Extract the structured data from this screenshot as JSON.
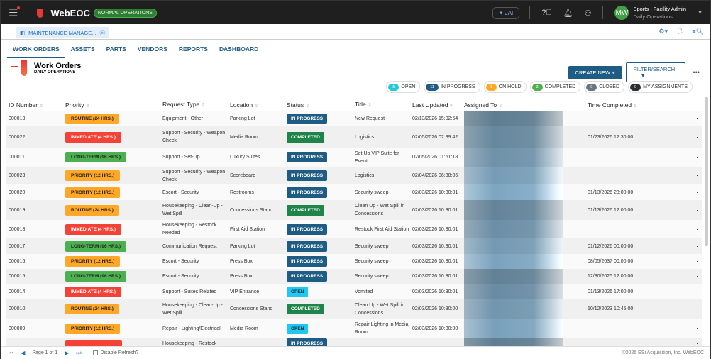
{
  "app": {
    "name": "WebEOC",
    "mode": "NORMAL OPERATIONS",
    "jai": "JAI",
    "user_initials": "MW",
    "user_name": "Sports - Facility Admin",
    "user_role": "Daily Operations"
  },
  "board_tab": "MAINTENANCE MANAGE...",
  "nav": [
    "WORK ORDERS",
    "ASSETS",
    "PARTS",
    "VENDORS",
    "REPORTS",
    "DASHBOARD"
  ],
  "page": {
    "title": "Work Orders",
    "subtitle": "DAILY OPERATIONS",
    "create": "CREATE NEW  +",
    "filter": "FILTER/SEARCH"
  },
  "pills": [
    {
      "count": "5",
      "label": "OPEN",
      "color": "#26c6da"
    },
    {
      "count": "11",
      "label": "IN PROGRESS",
      "color": "#1e5c84"
    },
    {
      "count": "1",
      "label": "ON HOLD",
      "color": "#ffa726"
    },
    {
      "count": "3",
      "label": "COMPLETED",
      "color": "#4caf50"
    },
    {
      "count": "0",
      "label": "CLOSED",
      "color": "#6c757d"
    },
    {
      "count": "0",
      "label": "MY ASSIGNMENTS",
      "color": "#2b2f33"
    }
  ],
  "columns": [
    "ID Number",
    "Priority",
    "Request Type",
    "Location",
    "Status",
    "Title",
    "Last Updated",
    "Assigned To",
    "Time Completed"
  ],
  "colors": {
    "ROUTINE": "#ffa726",
    "IMMEDIATE": "#f44336",
    "LONG-TERM": "#4caf50",
    "PRIORITY": "#ffa726",
    "IN PROGRESS": "#1e5c84",
    "COMPLETED": "#1e8449",
    "OPEN": "#1ec8f0"
  },
  "rows": [
    {
      "id": "000013",
      "priority": "ROUTINE (24 HRS.)",
      "ptype": "ROUTINE",
      "type": "Equipment - Other",
      "location": "Parking Lot",
      "status": "IN PROGRESS",
      "title": "New Request",
      "updated": "02/13/2026 15:02:54",
      "completed": "",
      "h": 22
    },
    {
      "id": "000022",
      "priority": "IMMEDIATE (4 HRS.)",
      "ptype": "IMMEDIATE",
      "type": "Support - Security - Weapon Check",
      "location": "Media Room",
      "status": "COMPLETED",
      "title": "Logistics",
      "updated": "02/05/2026 02:39:42",
      "completed": "01/23/2026 12:30:00",
      "h": 30
    },
    {
      "id": "000011",
      "priority": "LONG-TERM (96 HRS.)",
      "ptype": "LONG-TERM",
      "type": "Support - Set-Up",
      "location": "Luxury Suites",
      "status": "IN PROGRESS",
      "title": "Set Up VIP Suite for Event",
      "updated": "02/05/2026 01:51:18",
      "completed": "",
      "h": 27
    },
    {
      "id": "000023",
      "priority": "PRIORITY (12 HRS.)",
      "ptype": "PRIORITY",
      "type": "Support - Security - Weapon Check",
      "location": "Scoreboard",
      "status": "IN PROGRESS",
      "title": "Logistics",
      "updated": "02/04/2026 06:38:06",
      "completed": "",
      "h": 25
    },
    {
      "id": "000020",
      "priority": "PRIORITY (12 HRS.)",
      "ptype": "PRIORITY",
      "type": "Escort - Security",
      "location": "Restrooms",
      "status": "IN PROGRESS",
      "title": "Security sweep",
      "updated": "02/03/2026 10:30:01",
      "completed": "01/13/2026 23:00:00",
      "h": 22
    },
    {
      "id": "000019",
      "priority": "ROUTINE (24 HRS.)",
      "ptype": "ROUTINE",
      "type": "Housekeeping - Clean-Up - Wet Spill",
      "location": "Concessions Stand",
      "status": "COMPLETED",
      "title": "Clean Up - Wet Spill in Concessions",
      "updated": "02/03/2026 10:30:01",
      "completed": "01/13/2026 12:00:00",
      "h": 28
    },
    {
      "id": "000018",
      "priority": "IMMEDIATE (4 HRS.)",
      "ptype": "IMMEDIATE",
      "type": "Housekeeping - Restock Needed",
      "location": "First Aid Station",
      "status": "IN PROGRESS",
      "title": "Restock First Aid Station",
      "updated": "02/03/2026 10:30:01",
      "completed": "",
      "h": 26
    },
    {
      "id": "000017",
      "priority": "LONG-TERM (96 HRS.)",
      "ptype": "LONG-TERM",
      "type": "Communication Request",
      "location": "Parking Lot",
      "status": "IN PROGRESS",
      "title": "Security sweep",
      "updated": "02/03/2026 10:30:01",
      "completed": "01/12/2026 00:00:00",
      "h": 22
    },
    {
      "id": "000016",
      "priority": "PRIORITY (12 HRS.)",
      "ptype": "PRIORITY",
      "type": "Escort - Security",
      "location": "Press Box",
      "status": "IN PROGRESS",
      "title": "Security sweep",
      "updated": "02/03/2026 10:30:01",
      "completed": "08/05/2037 00:00:00",
      "h": 21
    },
    {
      "id": "000015",
      "priority": "LONG-TERM (96 HRS.)",
      "ptype": "LONG-TERM",
      "type": "Escort - Security",
      "location": "Press Box",
      "status": "IN PROGRESS",
      "title": "Security sweep",
      "updated": "02/03/2026 10:30:01",
      "completed": "12/30/2025 12:00:00",
      "h": 21
    },
    {
      "id": "000014",
      "priority": "IMMEDIATE (4 HRS.)",
      "ptype": "IMMEDIATE",
      "type": "Support - Suites Related",
      "location": "VIP Entrance",
      "status": "OPEN",
      "title": "Vomited",
      "updated": "02/03/2026 10:30:01",
      "completed": "01/13/2026 17:00:00",
      "h": 22
    },
    {
      "id": "000010",
      "priority": "ROUTINE (24 HRS.)",
      "ptype": "ROUTINE",
      "type": "Housekeeping - Clean-Up - Wet Spill",
      "location": "Concessions Stand",
      "status": "COMPLETED",
      "title": "Clean Up - Wet Spill in Concessions",
      "updated": "02/03/2026 10:30:00",
      "completed": "10/12/2023 10:45:00",
      "h": 27
    },
    {
      "id": "000009",
      "priority": "PRIORITY (12 HRS.)",
      "ptype": "PRIORITY",
      "type": "Repair - Lighting/Electrical",
      "location": "Media Room",
      "status": "OPEN",
      "title": "Repair Lighting in Media Room",
      "updated": "02/03/2026 10:30:00",
      "completed": "",
      "h": 28
    },
    {
      "id": "",
      "priority": "",
      "ptype": "IMMEDIATE",
      "type": "Housekeeping - Restock",
      "location": "",
      "status": "IN PROGRESS",
      "title": "",
      "updated": "",
      "completed": "",
      "h": 14
    }
  ],
  "footer": {
    "page": "Page 1 of 1",
    "disable_refresh": "Disable Refresh?",
    "copyright": "©2026 ESi Acquisition, Inc. WebEOC"
  }
}
